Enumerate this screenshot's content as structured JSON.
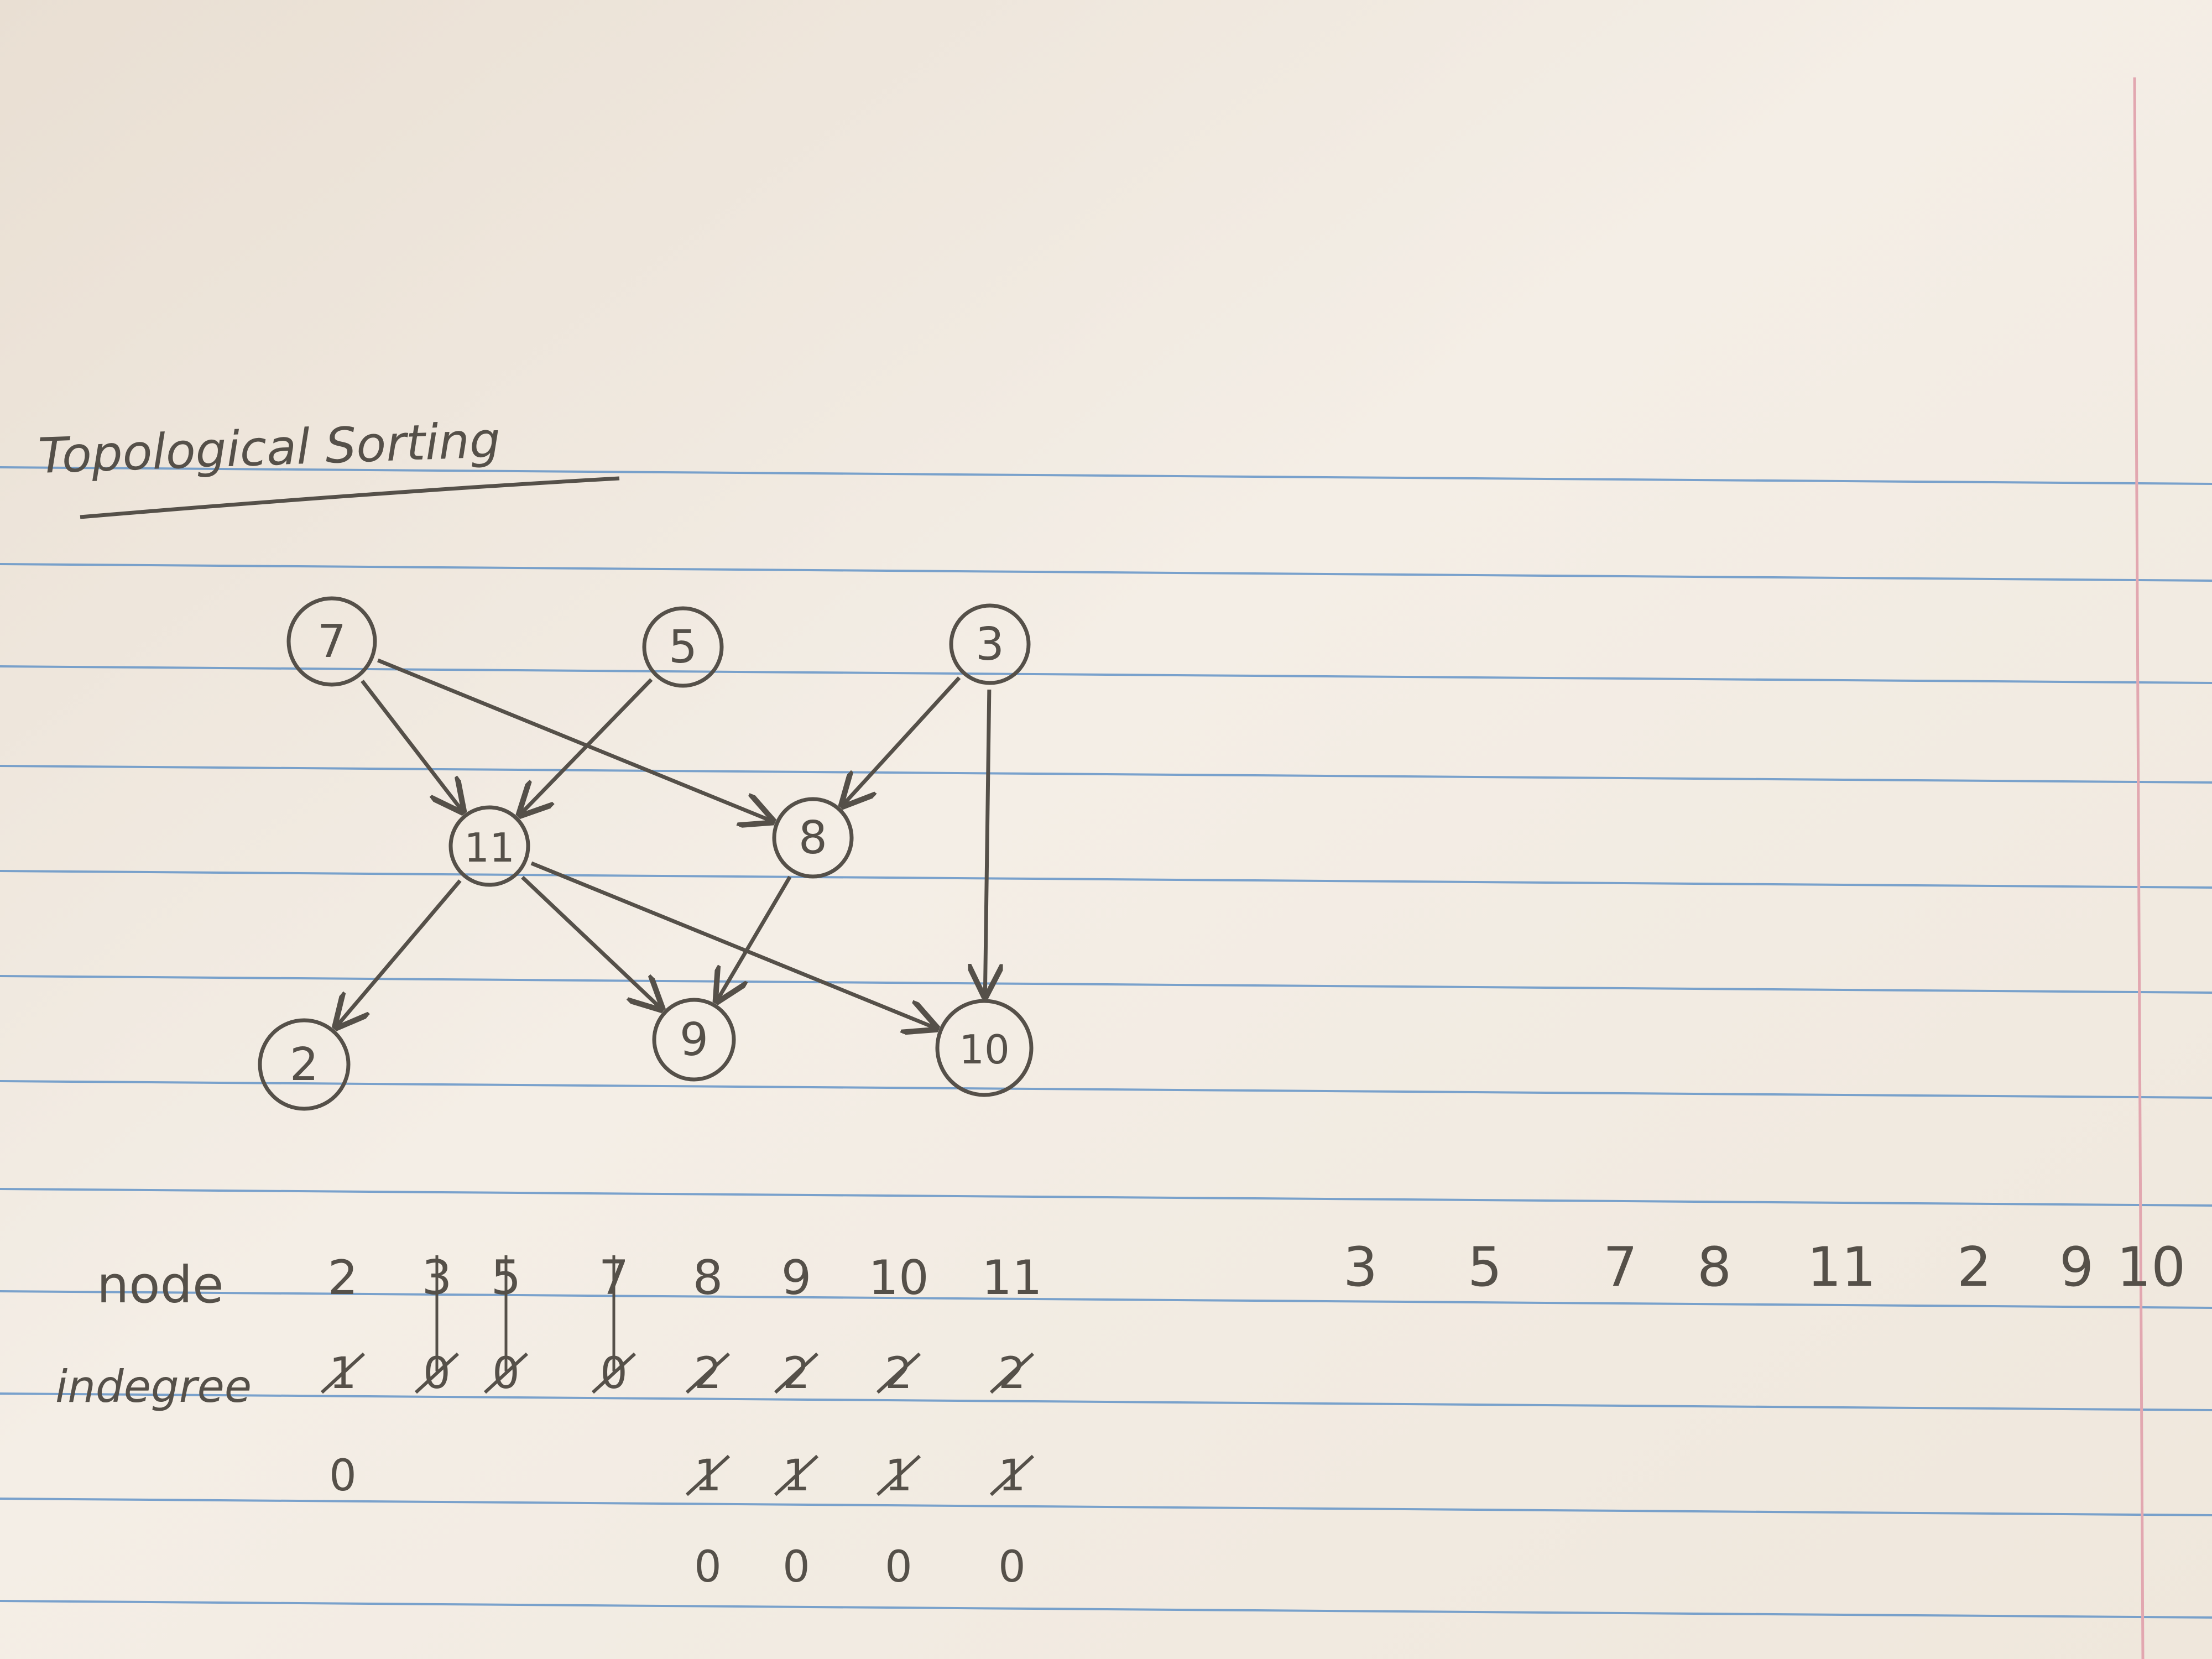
{
  "title": "Topological Sorting",
  "graph": {
    "nodes": [
      {
        "id": "7",
        "label": "7"
      },
      {
        "id": "5",
        "label": "5"
      },
      {
        "id": "3",
        "label": "3"
      },
      {
        "id": "11",
        "label": "11"
      },
      {
        "id": "8",
        "label": "8"
      },
      {
        "id": "2",
        "label": "2"
      },
      {
        "id": "9",
        "label": "9"
      },
      {
        "id": "10",
        "label": "10"
      }
    ],
    "edges": [
      {
        "from": "7",
        "to": "11"
      },
      {
        "from": "7",
        "to": "8"
      },
      {
        "from": "5",
        "to": "11"
      },
      {
        "from": "3",
        "to": "8"
      },
      {
        "from": "3",
        "to": "10"
      },
      {
        "from": "11",
        "to": "2"
      },
      {
        "from": "11",
        "to": "9"
      },
      {
        "from": "11",
        "to": "10"
      },
      {
        "from": "8",
        "to": "9"
      }
    ]
  },
  "table": {
    "node_label": "node",
    "indegree_label": "indegree",
    "columns": [
      {
        "node": "2",
        "rows": [
          "1",
          "0",
          ""
        ],
        "struck": [
          true,
          false,
          false
        ],
        "node_struck": false
      },
      {
        "node": "3",
        "rows": [
          "0",
          "",
          ""
        ],
        "struck": [
          true,
          false,
          false
        ],
        "node_struck": true
      },
      {
        "node": "5",
        "rows": [
          "0",
          "",
          ""
        ],
        "struck": [
          true,
          false,
          false
        ],
        "node_struck": true
      },
      {
        "node": "7",
        "rows": [
          "0",
          "",
          ""
        ],
        "struck": [
          true,
          false,
          false
        ],
        "node_struck": true
      },
      {
        "node": "8",
        "rows": [
          "2",
          "1",
          "0"
        ],
        "struck": [
          true,
          true,
          false
        ],
        "node_struck": false
      },
      {
        "node": "9",
        "rows": [
          "2",
          "1",
          "0"
        ],
        "struck": [
          true,
          true,
          false
        ],
        "node_struck": false
      },
      {
        "node": "10",
        "rows": [
          "2",
          "1",
          "0"
        ],
        "struck": [
          true,
          true,
          false
        ],
        "node_struck": false
      },
      {
        "node": "11",
        "rows": [
          "2",
          "1",
          "0"
        ],
        "struck": [
          true,
          true,
          false
        ],
        "node_struck": false
      }
    ]
  },
  "sorted_order": [
    "3",
    "5",
    "7",
    "8",
    "11",
    "2",
    "9",
    "10"
  ],
  "colors": {
    "paper": "#f3ebe2",
    "rule_line": "#5b8fc6",
    "margin_line": "#e2a7b0",
    "ink": "#555049"
  }
}
